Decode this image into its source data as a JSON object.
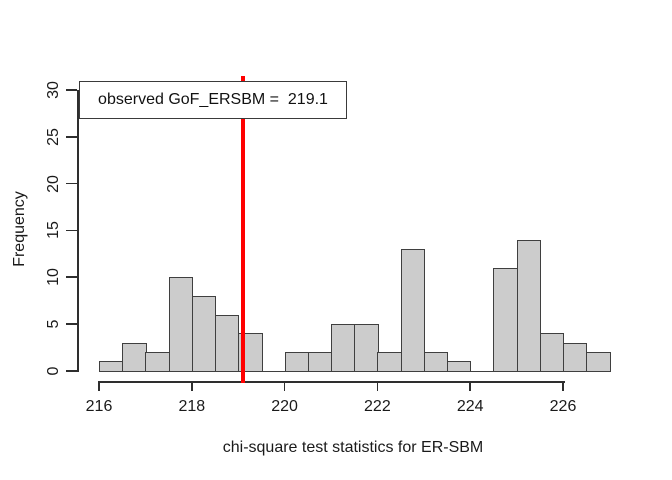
{
  "figure": {
    "background": "#ffffff"
  },
  "chart_data": {
    "type": "bar",
    "subtype": "histogram",
    "title": "",
    "xlabel": "chi-square test statistics for ER-SBM",
    "ylabel": "Frequency",
    "bin_start": 216,
    "bin_width": 0.5,
    "bin_end": 227,
    "counts": [
      1,
      3,
      2,
      10,
      8,
      6,
      4,
      0,
      2,
      2,
      5,
      5,
      2,
      13,
      2,
      1,
      0,
      11,
      14,
      4,
      3,
      2
    ],
    "x_ticks": [
      216,
      218,
      220,
      222,
      224,
      226
    ],
    "y_ticks": [
      0,
      5,
      10,
      15,
      20,
      25,
      30
    ],
    "xlim": [
      216,
      227
    ],
    "ylim": [
      0,
      30
    ],
    "grid": false,
    "legend_position": "topleft",
    "bar_fill": "#cccccc",
    "bar_border": "#3f3f3f",
    "axis_color": "#2e2e2e",
    "observed_line": {
      "value": 219.1,
      "color": "#ff0000",
      "label": "observed GoF_ERSBM =  219.1"
    }
  }
}
